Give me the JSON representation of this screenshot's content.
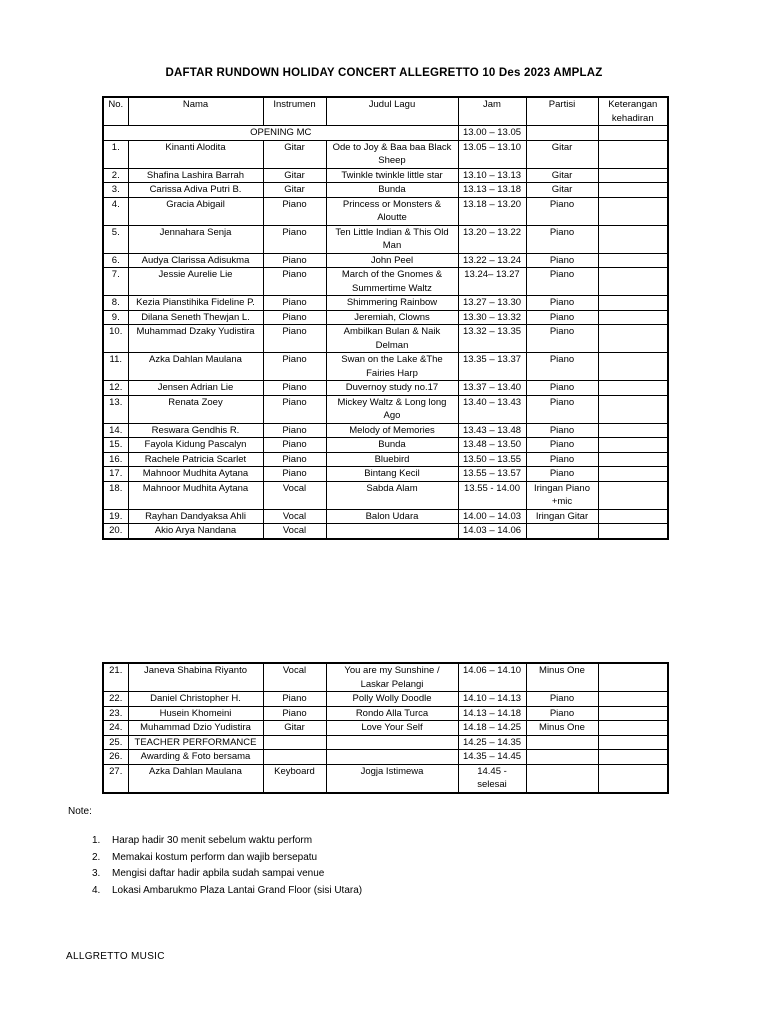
{
  "document": {
    "title": "DAFTAR RUNDOWN HOLIDAY CONCERT ALLEGRETTO 10 Des 2023 AMPLAZ",
    "note_heading": "Note:",
    "notes": [
      {
        "num": "1.",
        "text": "Harap hadir 30 menit sebelum waktu perform"
      },
      {
        "num": "2.",
        "text": "Memakai kostum perform dan wajib bersepatu"
      },
      {
        "num": "3.",
        "text": "Mengisi daftar hadir apbila sudah sampai venue"
      },
      {
        "num": "4.",
        "text": "Lokasi Ambarukmo Plaza Lantai Grand Floor (sisi Utara)"
      }
    ],
    "footer": "ALLGRETTO MUSIC"
  },
  "table": {
    "headers": [
      "No.",
      "Nama",
      "Instrumen",
      "Judul Lagu",
      "Jam",
      "Partisi",
      "Keterangan\nkehadiran"
    ],
    "opening": {
      "label": "OPENING MC",
      "jam": "13.00 – 13.05"
    },
    "rows_page_top": [
      {
        "no": "1.",
        "nama": "Kinanti Alodita",
        "instrumen": "Gitar",
        "judul": "Ode to Joy & Baa baa Black\nSheep",
        "jam": "13.05 – 13.10",
        "partisi": "Gitar",
        "keterangan": ""
      },
      {
        "no": "2.",
        "nama": "Shafina Lashira Barrah",
        "instrumen": "Gitar",
        "judul": "Twinkle twinkle little star",
        "jam": "13.10 – 13.13",
        "partisi": "Gitar",
        "keterangan": ""
      },
      {
        "no": "3.",
        "nama": "Carissa Adiva Putri B.",
        "instrumen": "Gitar",
        "judul": "Bunda",
        "jam": "13.13 – 13.18",
        "partisi": "Gitar",
        "keterangan": ""
      },
      {
        "no": "4.",
        "nama": "Gracia Abigail",
        "instrumen": "Piano",
        "judul": "Princess or Monsters &\nAloutte",
        "jam": "13.18 – 13.20",
        "partisi": "Piano",
        "keterangan": ""
      },
      {
        "no": "5.",
        "nama": "Jennahara Senja",
        "instrumen": "Piano",
        "judul": "Ten Little Indian & This Old\nMan",
        "jam": "13.20 – 13.22",
        "partisi": "Piano",
        "keterangan": ""
      },
      {
        "no": "6.",
        "nama": "Audya Clarissa Adisukma",
        "instrumen": "Piano",
        "judul": "John Peel",
        "jam": "13.22 – 13.24",
        "partisi": "Piano",
        "keterangan": ""
      },
      {
        "no": "7.",
        "nama": "Jessie Aurelie Lie",
        "instrumen": "Piano",
        "judul": "March of the Gnomes &\nSummertime Waltz",
        "jam": "13.24– 13.27",
        "partisi": "Piano",
        "keterangan": ""
      },
      {
        "no": "8.",
        "nama": "Kezia Pianstihika Fideline P.",
        "instrumen": "Piano",
        "judul": "Shimmering Rainbow",
        "jam": "13.27 – 13.30",
        "partisi": "Piano",
        "keterangan": ""
      },
      {
        "no": "9.",
        "nama": "Dilana Seneth Thewjan L.",
        "instrumen": "Piano",
        "judul": "Jeremiah, Clowns",
        "jam": "13.30 – 13.32",
        "partisi": "Piano",
        "keterangan": ""
      },
      {
        "no": "10.",
        "nama": "Muhammad Dzaky Yudistira",
        "instrumen": "Piano",
        "judul": "Ambilkan Bulan & Naik\nDelman",
        "jam": "13.32 – 13.35",
        "partisi": "Piano",
        "keterangan": ""
      },
      {
        "no": "11.",
        "nama": "Azka Dahlan Maulana",
        "instrumen": "Piano",
        "judul": "Swan on the Lake &The\nFairies Harp",
        "jam": "13.35 – 13.37",
        "partisi": "Piano",
        "keterangan": ""
      },
      {
        "no": "12.",
        "nama": "Jensen Adrian Lie",
        "instrumen": "Piano",
        "judul": "Duvernoy study no.17",
        "jam": "13.37 – 13.40",
        "partisi": "Piano",
        "keterangan": ""
      },
      {
        "no": "13.",
        "nama": "Renata Zoey",
        "instrumen": "Piano",
        "judul": "Mickey Waltz & Long long\nAgo",
        "jam": "13.40 – 13.43",
        "partisi": "Piano",
        "keterangan": ""
      },
      {
        "no": "14.",
        "nama": "Reswara Gendhis R.",
        "instrumen": "Piano",
        "judul": "Melody of Memories",
        "jam": "13.43 – 13.48",
        "partisi": "Piano",
        "keterangan": ""
      },
      {
        "no": "15.",
        "nama": "Fayola Kidung Pascalyn",
        "instrumen": "Piano",
        "judul": "Bunda",
        "jam": "13.48 – 13.50",
        "partisi": "Piano",
        "keterangan": ""
      },
      {
        "no": "16.",
        "nama": "Rachele Patricia Scarlet",
        "instrumen": "Piano",
        "judul": "Bluebird",
        "jam": "13.50 – 13.55",
        "partisi": "Piano",
        "keterangan": ""
      },
      {
        "no": "17.",
        "nama": "Mahnoor Mudhita Aytana",
        "instrumen": "Piano",
        "judul": "Bintang Kecil",
        "jam": "13.55 – 13.57",
        "partisi": "Piano",
        "keterangan": ""
      },
      {
        "no": "18.",
        "nama": "Mahnoor Mudhita Aytana",
        "instrumen": "Vocal",
        "judul": "Sabda Alam",
        "jam": "13.55 - 14.00",
        "partisi": "Iringan Piano\n+mic",
        "keterangan": ""
      },
      {
        "no": "19.",
        "nama": "Rayhan Dandyaksa Ahli",
        "instrumen": "Vocal",
        "judul": "Balon Udara",
        "jam": "14.00 – 14.03",
        "partisi": "Iringan Gitar",
        "keterangan": ""
      },
      {
        "no": "20.",
        "nama": "Akio Arya Nandana",
        "instrumen": "Vocal",
        "judul": "",
        "jam": "14.03 – 14.06",
        "partisi": "",
        "keterangan": ""
      }
    ],
    "rows_page_bottom": [
      {
        "no": "21.",
        "nama": "Janeva Shabina Riyanto",
        "instrumen": "Vocal",
        "judul": "You are my Sunshine /\nLaskar Pelangi",
        "jam": "14.06 – 14.10",
        "partisi": "Minus One",
        "keterangan": ""
      },
      {
        "no": "22.",
        "nama": "Daniel Christopher H.",
        "instrumen": "Piano",
        "judul": "Polly Wolly Doodle",
        "jam": "14.10 – 14.13",
        "partisi": "Piano",
        "keterangan": ""
      },
      {
        "no": "23.",
        "nama": "Husein Khomeini",
        "instrumen": "Piano",
        "judul": "Rondo Alla Turca",
        "jam": "14.13 – 14.18",
        "partisi": "Piano",
        "keterangan": ""
      },
      {
        "no": "24.",
        "nama": "Muhammad Dzio Yudistira",
        "instrumen": "Gitar",
        "judul": "Love Your Self",
        "jam": "14.18 – 14.25",
        "partisi": "Minus One",
        "keterangan": ""
      },
      {
        "no": "25.",
        "nama": "TEACHER PERFORMANCE",
        "instrumen": "",
        "judul": "",
        "jam": "14.25 – 14.35",
        "partisi": "",
        "keterangan": ""
      },
      {
        "no": "26.",
        "nama": "Awarding  & Foto bersama",
        "instrumen": "",
        "judul": "",
        "jam": "14.35 – 14.45",
        "partisi": "",
        "keterangan": ""
      },
      {
        "no": "27.",
        "nama": "Azka Dahlan Maulana",
        "instrumen": "Keyboard",
        "judul": "Jogja Istimewa",
        "jam": "14.45 -\nselesai",
        "partisi": "",
        "keterangan": ""
      }
    ]
  }
}
